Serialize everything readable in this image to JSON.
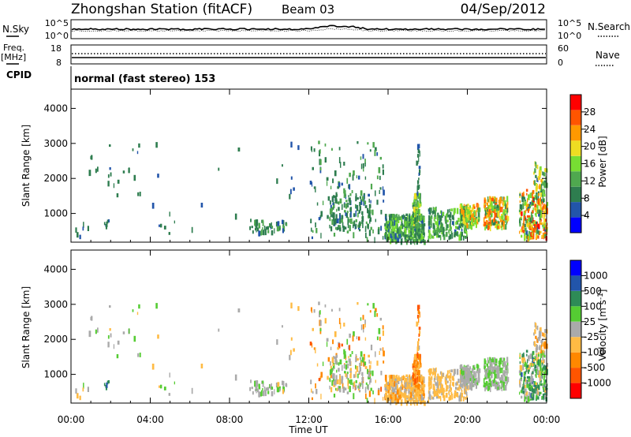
{
  "header": {
    "station": "Zhongshan Station (fitACF)",
    "beam": "Beam 03",
    "date": "04/Sep/2012"
  },
  "strip_labels": {
    "nsky": "N.Sky",
    "nsky_ticks": [
      "10^5",
      "10^0"
    ],
    "nsearch": "N.Search",
    "nsearch_ticks": [
      "10^5",
      "10^0"
    ],
    "freq": "Freq.",
    "freq_unit": "[MHz]",
    "freq_ticks": [
      "18",
      "8"
    ],
    "nave": "Nave",
    "nave_ticks": [
      "60",
      "0"
    ],
    "cpid": "CPID",
    "cpid_text": "normal (fast stereo) 153"
  },
  "colors": {
    "power": [
      "#0000ff",
      "#2255aa",
      "#2e7d4f",
      "#4fa84f",
      "#77dd33",
      "#eedd22",
      "#ff9900",
      "#ff5500",
      "#ff0000"
    ],
    "velocity": [
      "#ff0000",
      "#ff5500",
      "#ff8800",
      "#ffbb44",
      "#aaaaaa",
      "#55cc33",
      "#2e8b57",
      "#2255aa",
      "#0000ff"
    ]
  },
  "chart_data": [
    {
      "type": "heatmap",
      "name": "power",
      "ylabel": "Slant Range [km]",
      "ylim": [
        180,
        4550
      ],
      "yticks": [
        1000,
        2000,
        3000,
        4000
      ],
      "xlim": [
        0,
        24
      ],
      "xticks": [
        "00:00",
        "04:00",
        "08:00",
        "12:00",
        "16:00",
        "20:00",
        "00:00"
      ],
      "colorbar": {
        "label": "Power [dB]",
        "ticks": [
          "4",
          "8",
          "12",
          "16",
          "20",
          "24",
          "28"
        ],
        "range": [
          0,
          30
        ]
      },
      "regions": [
        {
          "t0": 0.2,
          "t1": 1.0,
          "r0": 300,
          "r1": 900,
          "n": 6,
          "v": [
            6,
            9
          ]
        },
        {
          "t0": 1.6,
          "t1": 1.9,
          "r0": 650,
          "r1": 900,
          "n": 6,
          "v": [
            6,
            8
          ]
        },
        {
          "t0": 0.8,
          "t1": 3.5,
          "r0": 1500,
          "r1": 3200,
          "n": 22,
          "v": [
            6,
            9
          ]
        },
        {
          "t0": 4.0,
          "t1": 8.8,
          "r0": 400,
          "r1": 3100,
          "n": 14,
          "v": [
            6,
            9
          ]
        },
        {
          "t0": 9.0,
          "t1": 10.9,
          "r0": 500,
          "r1": 850,
          "n": 55,
          "v": [
            6,
            13
          ]
        },
        {
          "t0": 10.2,
          "t1": 12.0,
          "r0": 1200,
          "r1": 3200,
          "n": 8,
          "v": [
            6,
            8
          ]
        },
        {
          "t0": 12.0,
          "t1": 15.8,
          "r0": 300,
          "r1": 3100,
          "n": 140,
          "v": [
            6,
            12
          ]
        },
        {
          "t0": 13.0,
          "t1": 15.2,
          "r0": 600,
          "r1": 1600,
          "n": 120,
          "v": [
            6,
            12
          ]
        },
        {
          "t0": 15.8,
          "t1": 17.8,
          "r0": 250,
          "r1": 1000,
          "n": 340,
          "v": [
            6,
            16
          ]
        },
        {
          "t0": 17.2,
          "t1": 17.6,
          "r0": 700,
          "r1": 1600,
          "n": 90,
          "v": [
            8,
            18
          ]
        },
        {
          "t0": 17.4,
          "t1": 17.6,
          "r0": 1600,
          "r1": 3000,
          "n": 20,
          "v": [
            6,
            10
          ]
        },
        {
          "t0": 18.0,
          "t1": 20.0,
          "r0": 350,
          "r1": 1200,
          "n": 200,
          "v": [
            6,
            16
          ]
        },
        {
          "t0": 19.6,
          "t1": 20.6,
          "r0": 700,
          "r1": 1300,
          "n": 120,
          "v": [
            8,
            24
          ]
        },
        {
          "t0": 20.8,
          "t1": 22.0,
          "r0": 650,
          "r1": 1500,
          "n": 180,
          "v": [
            8,
            26
          ]
        },
        {
          "t0": 22.6,
          "t1": 24.0,
          "r0": 350,
          "r1": 1700,
          "n": 250,
          "v": [
            6,
            28
          ]
        },
        {
          "t0": 23.3,
          "t1": 24.0,
          "r0": 1700,
          "r1": 2500,
          "n": 45,
          "v": [
            6,
            22
          ]
        }
      ]
    },
    {
      "type": "heatmap",
      "name": "velocity",
      "ylabel": "Slant Range [km]",
      "ylim": [
        180,
        4550
      ],
      "yticks": [
        1000,
        2000,
        3000,
        4000
      ],
      "xlim": [
        0,
        24
      ],
      "xticks": [
        "00:00",
        "04:00",
        "08:00",
        "12:00",
        "16:00",
        "20:00",
        "00:00"
      ],
      "xlabel": "Time UT",
      "colorbar": {
        "label": "Velocity [m s^-1]",
        "ticks": [
          "1000",
          "500",
          "100",
          "25",
          "-25",
          "-100",
          "-500",
          "-1000"
        ],
        "range": [
          -1200,
          1200
        ]
      },
      "regions": [
        {
          "t0": 0.2,
          "t1": 1.0,
          "r0": 300,
          "r1": 900,
          "n": 6,
          "v": [
            -300,
            200
          ]
        },
        {
          "t0": 1.6,
          "t1": 1.9,
          "r0": 650,
          "r1": 900,
          "n": 6,
          "v": [
            400,
            900
          ]
        },
        {
          "t0": 0.8,
          "t1": 3.5,
          "r0": 1500,
          "r1": 3200,
          "n": 22,
          "v": [
            -300,
            300
          ]
        },
        {
          "t0": 4.0,
          "t1": 8.8,
          "r0": 400,
          "r1": 3100,
          "n": 14,
          "v": [
            -300,
            300
          ]
        },
        {
          "t0": 9.0,
          "t1": 10.9,
          "r0": 500,
          "r1": 850,
          "n": 55,
          "v": [
            -150,
            300
          ]
        },
        {
          "t0": 10.2,
          "t1": 12.0,
          "r0": 1200,
          "r1": 3200,
          "n": 8,
          "v": [
            -300,
            200
          ]
        },
        {
          "t0": 12.0,
          "t1": 15.8,
          "r0": 300,
          "r1": 3100,
          "n": 140,
          "v": [
            -700,
            300
          ]
        },
        {
          "t0": 13.0,
          "t1": 15.2,
          "r0": 600,
          "r1": 1600,
          "n": 120,
          "v": [
            -300,
            400
          ]
        },
        {
          "t0": 15.8,
          "t1": 17.8,
          "r0": 250,
          "r1": 1000,
          "n": 340,
          "v": [
            -450,
            -40
          ]
        },
        {
          "t0": 17.2,
          "t1": 17.6,
          "r0": 700,
          "r1": 1600,
          "n": 90,
          "v": [
            -800,
            -200
          ]
        },
        {
          "t0": 17.4,
          "t1": 17.6,
          "r0": 1600,
          "r1": 3000,
          "n": 20,
          "v": [
            -900,
            -100
          ]
        },
        {
          "t0": 18.0,
          "t1": 20.0,
          "r0": 350,
          "r1": 1200,
          "n": 200,
          "v": [
            -400,
            -40
          ]
        },
        {
          "t0": 19.6,
          "t1": 20.6,
          "r0": 700,
          "r1": 1300,
          "n": 120,
          "v": [
            -100,
            200
          ]
        },
        {
          "t0": 20.8,
          "t1": 22.0,
          "r0": 650,
          "r1": 1500,
          "n": 180,
          "v": [
            -100,
            250
          ]
        },
        {
          "t0": 22.6,
          "t1": 24.0,
          "r0": 350,
          "r1": 1700,
          "n": 250,
          "v": [
            -300,
            700
          ]
        },
        {
          "t0": 23.3,
          "t1": 24.0,
          "r0": 1700,
          "r1": 2500,
          "n": 45,
          "v": [
            -600,
            100
          ]
        }
      ]
    }
  ]
}
